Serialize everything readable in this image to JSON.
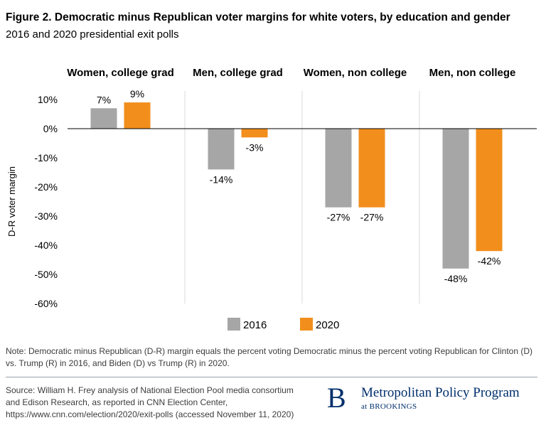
{
  "header": {
    "title": "Figure 2. Democratic minus Republican voter margins for white voters, by education and gender",
    "subtitle": "2016 and 2020 presidential exit polls"
  },
  "chart_data": {
    "type": "bar",
    "categories": [
      "Women, college grad",
      "Men, college grad",
      "Women, non college",
      "Men, non college"
    ],
    "series": [
      {
        "name": "2016",
        "values": [
          7,
          -14,
          -27,
          -48
        ],
        "labels": [
          "7%",
          "-14%",
          "-27%",
          "-48%"
        ],
        "color": "#a6a6a6"
      },
      {
        "name": "2020",
        "values": [
          9,
          -3,
          -27,
          -42
        ],
        "labels": [
          "9%",
          "-3%",
          "-27%",
          "-42%"
        ],
        "color": "#f28e1c"
      }
    ],
    "ylabel": "D-R voter margin",
    "ylim": [
      -60,
      10
    ],
    "yticks": [
      10,
      0,
      -10,
      -20,
      -30,
      -40,
      -50,
      -60
    ],
    "ytick_labels": [
      "10%",
      "0%",
      "-10%",
      "-20%",
      "-30%",
      "-40%",
      "-50%",
      "-60%"
    ],
    "legend_position": "bottom-center",
    "grid": false
  },
  "footer": {
    "note": "Note: Democratic minus Republican (D-R) margin equals the percent voting Democratic minus the percent  voting Republican for Clinton (D) vs. Trump (R) in 2016, and Biden (D) vs Trump (R) in 2020.",
    "source": "Source: William H. Frey analysis of National Election Pool media consortium and Edison Research, as reported in CNN Election Center, https://www.cnn.com/election/2020/exit-polls (accessed November 11, 2020)"
  },
  "logo": {
    "letter": "B",
    "program": "Metropolitan Policy Program",
    "affiliation": "at BROOKINGS",
    "color": "#002f6c"
  }
}
